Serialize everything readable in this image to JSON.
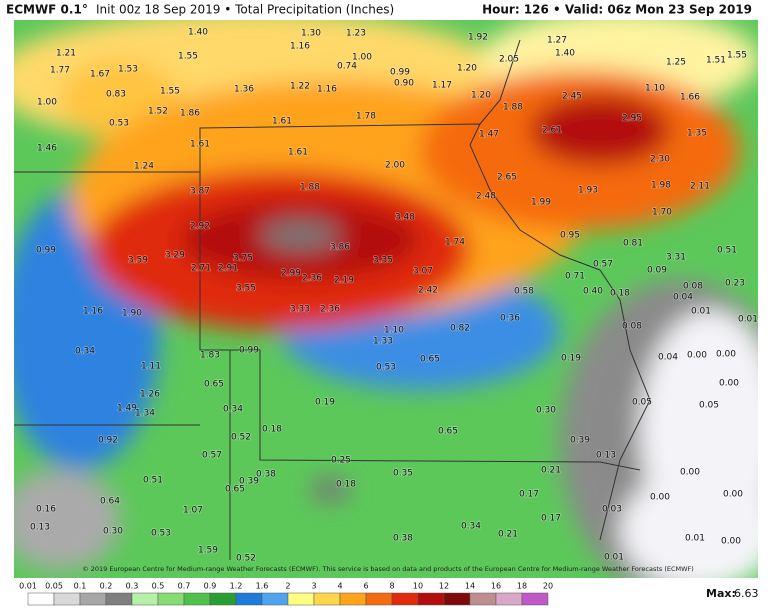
{
  "header": {
    "model": "ECMWF 0.1°",
    "init": "Init 00z 18 Sep 2019 • Total Precipitation (Inches)",
    "valid": "Hour: 126 • Valid: 06z Mon 23 Sep 2019"
  },
  "map": {
    "labels": [
      "1.40",
      "1.30",
      "1.23",
      "1.92",
      "1.27",
      "1.21",
      "1.16",
      "1.55",
      "1.40",
      "1.25",
      "1.51",
      "1.55",
      "1.77",
      "1.67",
      "1.53",
      "1.00",
      "0.74",
      "0.99",
      "1.20",
      "2.05",
      "1.55",
      "1.36",
      "1.22",
      "1.16",
      "0.90",
      "1.17",
      "1.20",
      "1.10",
      "1.66",
      "0.83",
      "1.00",
      "1.52",
      "1.86",
      "1.78",
      "1.61",
      "1.88",
      "2.45",
      "2.95",
      "1.35",
      "0.53",
      "1.47",
      "2.61",
      "1.46",
      "1.61",
      "1.61",
      "2.30",
      "1.24",
      "2.00",
      "2.65",
      "3.87",
      "1.88",
      "1.93",
      "1.98",
      "2.11",
      "2.48",
      "1.99",
      "1.70",
      "3.48",
      "2.92",
      "0.95",
      "0.81",
      "3.86",
      "1.74",
      "0.99",
      "3.29",
      "3.75",
      "3.59",
      "0.71",
      "0.57",
      "3.31",
      "0.51",
      "2.91",
      "2.71",
      "3.35",
      "0.09",
      "3.07",
      "2.99",
      "2.36",
      "2.19",
      "0.23",
      "0.08",
      "0.04",
      "0.40",
      "0.18",
      "0.58",
      "3.55",
      "2.42",
      "1.16",
      "1.90",
      "3.33",
      "2.36",
      "0.36",
      "0.01",
      "0.82",
      "1.10",
      "0.08",
      "0.01",
      "1.33",
      "0.34",
      "1.83",
      "0.99",
      "0.00",
      "0.04",
      "0.00",
      "0.65",
      "0.19",
      "0.53",
      "1.11",
      "0.00",
      "0.65",
      "1.26",
      "0.19",
      "0.05",
      "0.05",
      "1.49",
      "1.34",
      "0.34",
      "0.30",
      "0.18",
      "0.65",
      "0.92",
      "0.52",
      "0.39",
      "0.57",
      "0.13",
      "0.25",
      "0.38",
      "0.35",
      "0.21",
      "0.00",
      "0.51",
      "0.39",
      "0.18",
      "0.65",
      "0.17",
      "0.00",
      "0.00",
      "0.64",
      "0.16",
      "1.07",
      "0.03",
      "0.17",
      "0.13",
      "0.34",
      "0.30",
      "0.53",
      "0.21",
      "0.38",
      "0.01",
      "0.00",
      "1.59",
      "0.52",
      "0.01"
    ],
    "credit": "© 2019 European Centre for Medium-range Weather Forecasts (ECMWF). This service is based on data and products of the European Centre for Medium-range Weather Forecasts (ECMWF)"
  },
  "legend": {
    "ticks": [
      "0.01",
      "0.05",
      "0.1",
      "0.2",
      "0.3",
      "0.5",
      "0.7",
      "0.9",
      "1.2",
      "1.6",
      "2",
      "3",
      "4",
      "6",
      "8",
      "10",
      "12",
      "14",
      "16",
      "18",
      "20"
    ],
    "colors": [
      "#ffffff",
      "#d9d9d9",
      "#a6a6a6",
      "#7f7f7f",
      "#b7f0a8",
      "#86dd74",
      "#4fc14a",
      "#2b9e33",
      "#1f7bd8",
      "#4da3ee",
      "#ffff7f",
      "#ffd54a",
      "#ffa31a",
      "#f56b0f",
      "#e02a0b",
      "#b30d0d",
      "#7f0a0a",
      "#bf8f8f",
      "#d9a8c9",
      "#c058c8",
      "#9a1fa8"
    ],
    "max_label": "Max:",
    "max_value": "6.63"
  }
}
